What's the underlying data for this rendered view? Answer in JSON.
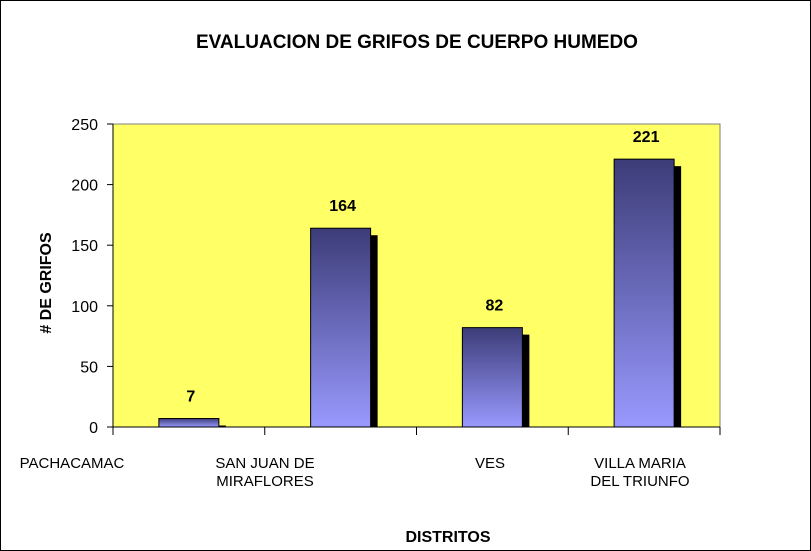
{
  "chart_data": {
    "type": "bar",
    "title": "EVALUACION DE GRIFOS DE CUERPO HUMEDO",
    "x_label": "DISTRITOS",
    "y_label": "# DE GRIFOS",
    "categories": [
      "PACHACAMAC",
      "SAN JUAN DE\nMIRAFLORES",
      "VES",
      "VILLA MARIA\nDEL TRIUNFO"
    ],
    "values": [
      7,
      164,
      82,
      221
    ],
    "color": "#9999ff",
    "background": "#ffff66",
    "ylim": [
      0,
      250
    ],
    "yticks": [
      0,
      50,
      100,
      150,
      200,
      250
    ]
  }
}
